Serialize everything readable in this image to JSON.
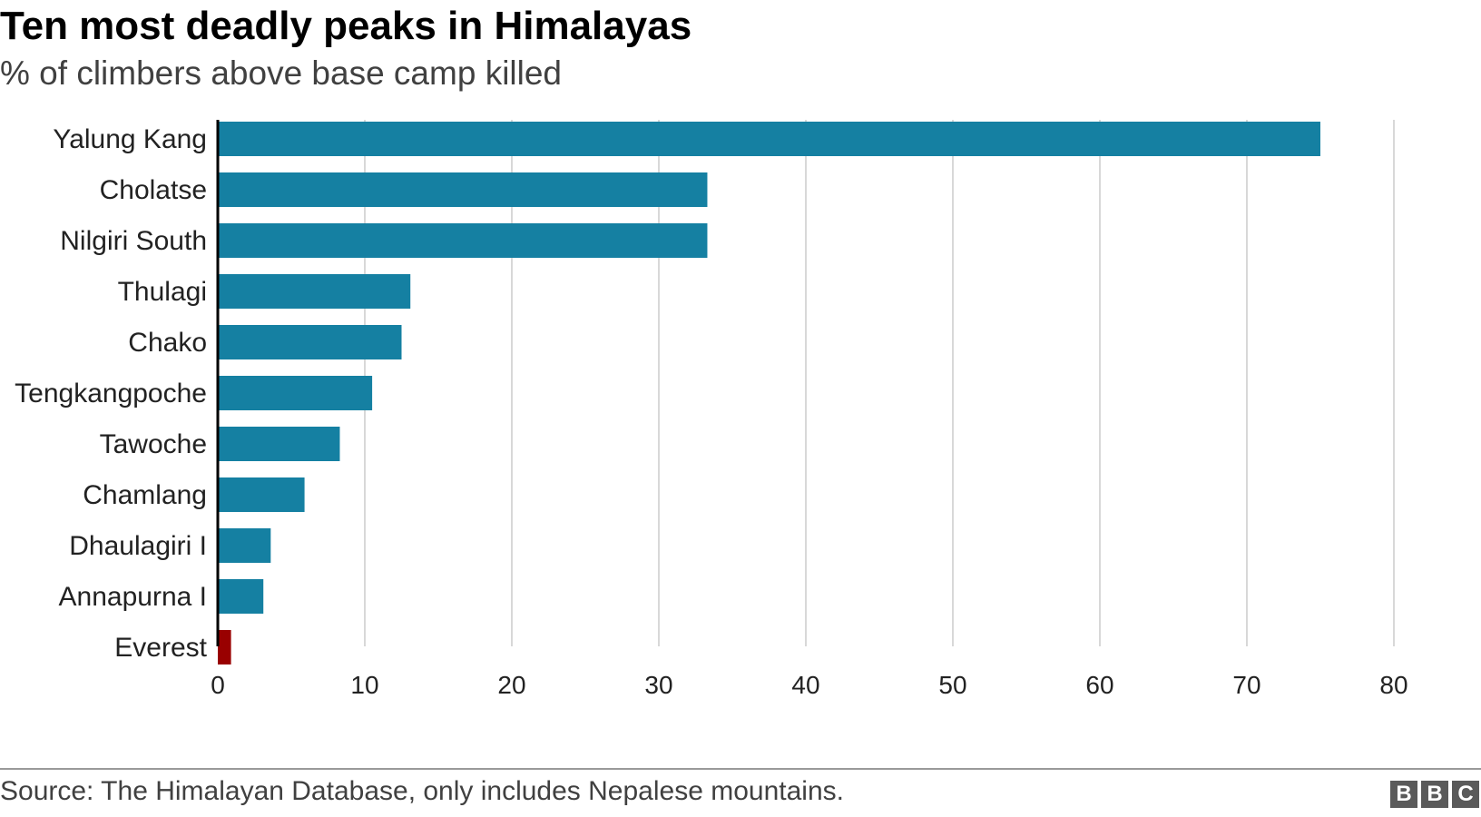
{
  "header": {
    "title": "Ten most deadly peaks in Himalayas",
    "subtitle": "% of climbers above base camp killed"
  },
  "footer": {
    "source": "Source: The Himalayan Database, only includes Nepalese mountains.",
    "logo_letters": [
      "B",
      "B",
      "C"
    ]
  },
  "colors": {
    "bar": "#1580a2",
    "highlight": "#990000",
    "grid": "#cccccc",
    "axis": "#000000"
  },
  "chart_data": {
    "type": "bar",
    "orientation": "horizontal",
    "title": "Ten most deadly peaks in Himalayas",
    "subtitle": "% of climbers above base camp killed",
    "categories": [
      "Yalung Kang",
      "Cholatse",
      "Nilgiri South",
      "Thulagi",
      "Chako",
      "Tengkangpoche",
      "Tawoche",
      "Chamlang",
      "Dhaulagiri I",
      "Annapurna I",
      "Everest"
    ],
    "values": [
      75,
      33.3,
      33.3,
      13.1,
      12.5,
      10.5,
      8.3,
      5.9,
      3.6,
      3.1,
      0.9
    ],
    "highlight": [
      "Everest"
    ],
    "xlim": [
      0,
      80
    ],
    "xticks": [
      0,
      10,
      20,
      30,
      40,
      50,
      60,
      70,
      80
    ],
    "grid": true
  }
}
